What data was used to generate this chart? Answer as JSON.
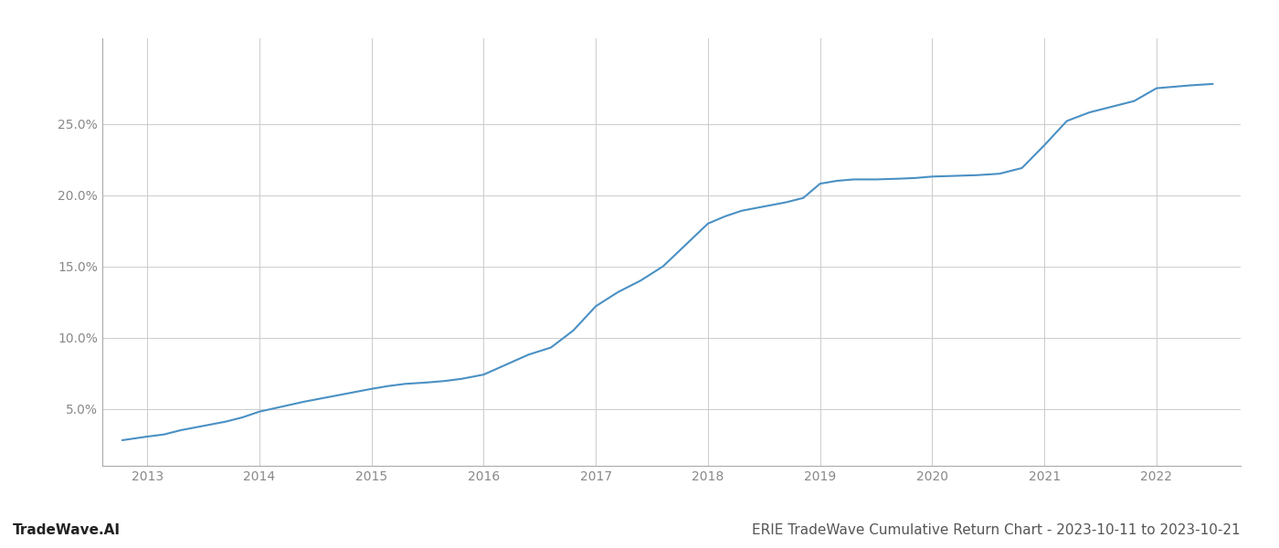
{
  "title": "ERIE TradeWave Cumulative Return Chart - 2023-10-11 to 2023-10-21",
  "watermark": "TradeWave.AI",
  "line_color": "#4a90c4",
  "background_color": "#ffffff",
  "grid_color": "#cccccc",
  "years": [
    2013,
    2014,
    2015,
    2016,
    2017,
    2018,
    2019,
    2020,
    2021,
    2022
  ],
  "x_values": [
    2012.78,
    2013.0,
    2013.15,
    2013.3,
    2013.5,
    2013.7,
    2013.85,
    2014.0,
    2014.2,
    2014.4,
    2014.6,
    2014.8,
    2015.0,
    2015.15,
    2015.3,
    2015.5,
    2015.65,
    2015.8,
    2016.0,
    2016.2,
    2016.4,
    2016.6,
    2016.8,
    2017.0,
    2017.2,
    2017.4,
    2017.6,
    2017.8,
    2018.0,
    2018.15,
    2018.3,
    2018.5,
    2018.7,
    2018.85,
    2019.0,
    2019.15,
    2019.3,
    2019.5,
    2019.7,
    2019.85,
    2020.0,
    2020.2,
    2020.4,
    2020.6,
    2020.8,
    2021.0,
    2021.2,
    2021.4,
    2021.6,
    2021.8,
    2022.0,
    2022.3,
    2022.5
  ],
  "y_values": [
    2.8,
    3.05,
    3.2,
    3.5,
    3.8,
    4.1,
    4.4,
    4.8,
    5.15,
    5.5,
    5.8,
    6.1,
    6.4,
    6.6,
    6.75,
    6.85,
    6.95,
    7.1,
    7.4,
    8.1,
    8.8,
    9.3,
    10.5,
    12.2,
    13.2,
    14.0,
    15.0,
    16.5,
    18.0,
    18.5,
    18.9,
    19.2,
    19.5,
    19.8,
    20.8,
    21.0,
    21.1,
    21.1,
    21.15,
    21.2,
    21.3,
    21.35,
    21.4,
    21.5,
    21.9,
    23.5,
    25.2,
    25.8,
    26.2,
    26.6,
    27.5,
    27.7,
    27.8
  ],
  "yticks": [
    5.0,
    10.0,
    15.0,
    20.0,
    25.0
  ],
  "ylim": [
    1.0,
    31.0
  ],
  "xlim": [
    2012.6,
    2022.75
  ],
  "ylabel_fontsize": 10,
  "xlabel_fontsize": 10,
  "title_fontsize": 11,
  "watermark_fontsize": 11,
  "tick_label_color": "#888888",
  "title_color": "#555555",
  "watermark_color": "#222222",
  "line_width": 1.5
}
